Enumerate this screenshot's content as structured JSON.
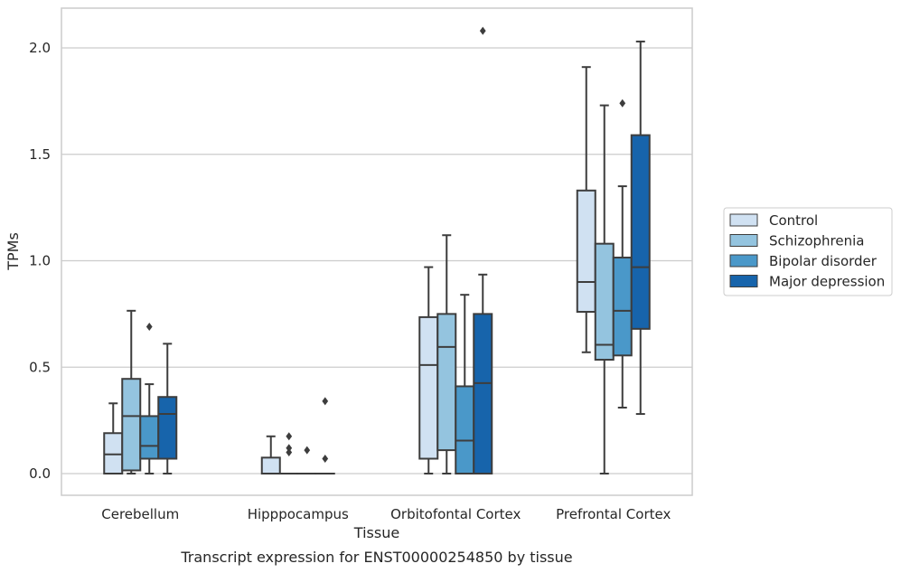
{
  "chart_data": {
    "type": "box",
    "title": "",
    "caption": "Transcript expression for ENST00000254850 by tissue",
    "xlabel": "Tissue",
    "ylabel": "TPMs",
    "ylim": [
      -0.1,
      2.19
    ],
    "yticks": [
      0.0,
      0.5,
      1.0,
      1.5,
      2.0
    ],
    "ytick_labels": [
      "0.0",
      "0.5",
      "1.0",
      "1.5",
      "2.0"
    ],
    "grid": "horizontal",
    "legend_position": "right",
    "categories": [
      "Cerebellum",
      "Hipppocampus",
      "Orbitofontal Cortex",
      "Prefrontal Cortex"
    ],
    "series": [
      {
        "name": "Control",
        "color": "#d0e1f2",
        "boxes": [
          {
            "whislo": 0.0,
            "q1": 0.0,
            "med": 0.09,
            "q3": 0.19,
            "whishi": 0.33,
            "fliers": []
          },
          {
            "whislo": 0.0,
            "q1": 0.0,
            "med": 0.0,
            "q3": 0.075,
            "whishi": 0.175,
            "fliers": []
          },
          {
            "whislo": 0.0,
            "q1": 0.07,
            "med": 0.51,
            "q3": 0.735,
            "whishi": 0.97,
            "fliers": []
          },
          {
            "whislo": 0.57,
            "q1": 0.76,
            "med": 0.9,
            "q3": 1.33,
            "whishi": 1.91,
            "fliers": []
          }
        ]
      },
      {
        "name": "Schizophrenia",
        "color": "#94c4df",
        "boxes": [
          {
            "whislo": 0.0,
            "q1": 0.015,
            "med": 0.27,
            "q3": 0.445,
            "whishi": 0.765,
            "fliers": []
          },
          {
            "whislo": 0.0,
            "q1": 0.0,
            "med": 0.0,
            "q3": 0.0,
            "whishi": 0.0,
            "fliers": [
              0.175,
              0.12,
              0.1
            ]
          },
          {
            "whislo": 0.0,
            "q1": 0.11,
            "med": 0.595,
            "q3": 0.75,
            "whishi": 1.12,
            "fliers": []
          },
          {
            "whislo": 0.0,
            "q1": 0.535,
            "med": 0.605,
            "q3": 1.08,
            "whishi": 1.73,
            "fliers": []
          }
        ]
      },
      {
        "name": "Bipolar disorder",
        "color": "#4a98c9",
        "boxes": [
          {
            "whislo": 0.0,
            "q1": 0.07,
            "med": 0.13,
            "q3": 0.27,
            "whishi": 0.42,
            "fliers": [
              0.69
            ]
          },
          {
            "whislo": 0.0,
            "q1": 0.0,
            "med": 0.0,
            "q3": 0.0,
            "whishi": 0.0,
            "fliers": [
              0.11
            ]
          },
          {
            "whislo": 0.0,
            "q1": 0.0,
            "med": 0.155,
            "q3": 0.41,
            "whishi": 0.84,
            "fliers": []
          },
          {
            "whislo": 0.31,
            "q1": 0.555,
            "med": 0.765,
            "q3": 1.015,
            "whishi": 1.35,
            "fliers": [
              1.74
            ]
          }
        ]
      },
      {
        "name": "Major depression",
        "color": "#1764ab",
        "boxes": [
          {
            "whislo": 0.0,
            "q1": 0.07,
            "med": 0.28,
            "q3": 0.36,
            "whishi": 0.61,
            "fliers": []
          },
          {
            "whislo": 0.0,
            "q1": 0.0,
            "med": 0.0,
            "q3": 0.0,
            "whishi": 0.0,
            "fliers": [
              0.34,
              0.07
            ]
          },
          {
            "whislo": 0.0,
            "q1": 0.0,
            "med": 0.425,
            "q3": 0.75,
            "whishi": 0.935,
            "fliers": [
              2.08
            ]
          },
          {
            "whislo": 0.28,
            "q1": 0.68,
            "med": 0.97,
            "q3": 1.59,
            "whishi": 2.03,
            "fliers": []
          }
        ]
      }
    ],
    "colors": {
      "line": "#3d3d3d",
      "grid": "#cccccc",
      "frame": "#cccccc"
    }
  }
}
